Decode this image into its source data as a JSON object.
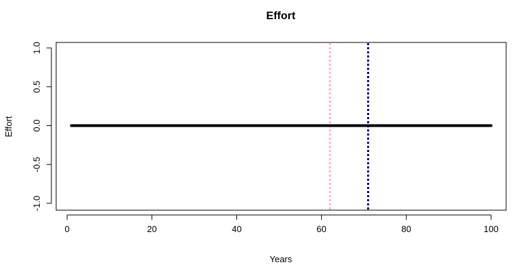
{
  "chart_data": {
    "type": "line",
    "title": "Effort",
    "xlabel": "Years",
    "ylabel": "Effort",
    "xlim": [
      1,
      100
    ],
    "ylim": [
      -1.0,
      1.0
    ],
    "x_ticks": [
      0,
      20,
      40,
      60,
      80,
      100
    ],
    "x_tick_labels": [
      "0",
      "20",
      "40",
      "60",
      "80",
      "100"
    ],
    "y_ticks": [
      -1.0,
      -0.5,
      0.0,
      0.5,
      1.0
    ],
    "y_tick_labels": [
      "-1.0",
      "-0.5",
      "0.0",
      "0.5",
      "1.0"
    ],
    "grid": false,
    "series": [
      {
        "x_start": 1,
        "x_end": 100,
        "y": 0.0,
        "color": "#000000",
        "style": "solid"
      }
    ],
    "vlines": [
      {
        "x": 62,
        "color": "#ffb6c1",
        "style": "dotted"
      },
      {
        "x": 71,
        "color": "#00008b",
        "style": "dotted"
      }
    ]
  }
}
